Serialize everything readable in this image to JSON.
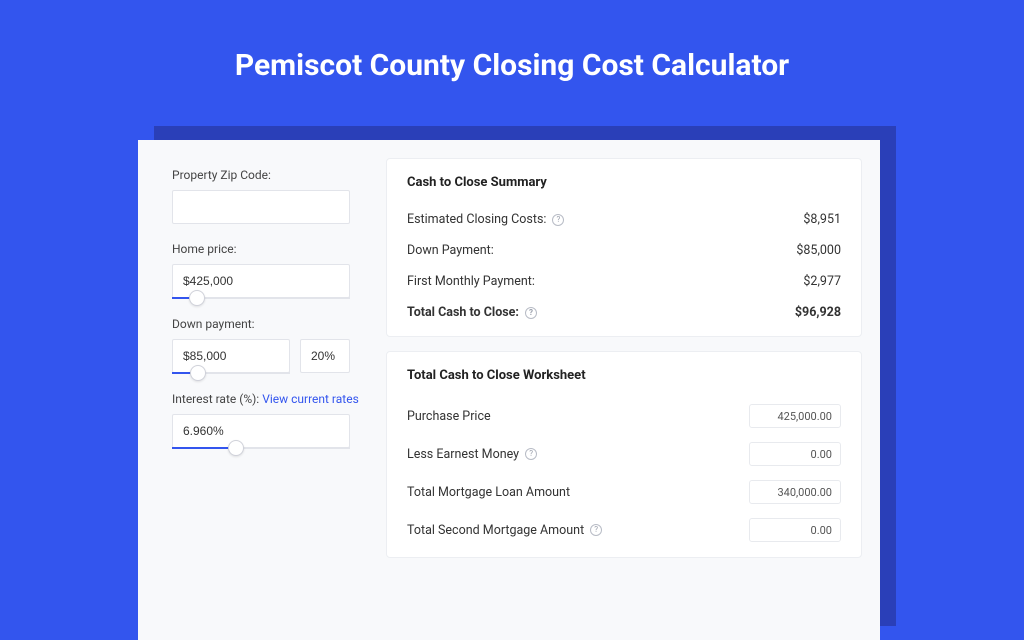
{
  "colors": {
    "page_bg": "#3355ee",
    "shadow": "#2a3fb8",
    "card_bg": "#f8f9fb",
    "panel_bg": "#ffffff",
    "border": "#e2e4ea",
    "link": "#3355ee",
    "text": "#333333"
  },
  "header": {
    "title": "Pemiscot County Closing Cost Calculator"
  },
  "form": {
    "zip": {
      "label": "Property Zip Code:",
      "value": ""
    },
    "home_price": {
      "label": "Home price:",
      "value": "$425,000",
      "slider_pct": 14
    },
    "down_payment": {
      "label": "Down payment:",
      "amount": "$85,000",
      "percent": "20%",
      "slider_pct": 22
    },
    "interest_rate": {
      "label_prefix": "Interest rate (%): ",
      "link_text": "View current rates",
      "value": "6.960%",
      "slider_pct": 36
    }
  },
  "summary": {
    "title": "Cash to Close Summary",
    "rows": [
      {
        "label": "Estimated Closing Costs:",
        "help": true,
        "value": "$8,951",
        "bold": false
      },
      {
        "label": "Down Payment:",
        "help": false,
        "value": "$85,000",
        "bold": false
      },
      {
        "label": "First Monthly Payment:",
        "help": false,
        "value": "$2,977",
        "bold": false
      },
      {
        "label": "Total Cash to Close:",
        "help": true,
        "value": "$96,928",
        "bold": true
      }
    ]
  },
  "worksheet": {
    "title": "Total Cash to Close Worksheet",
    "rows": [
      {
        "label": "Purchase Price",
        "help": false,
        "value": "425,000.00"
      },
      {
        "label": "Less Earnest Money",
        "help": true,
        "value": "0.00"
      },
      {
        "label": "Total Mortgage Loan Amount",
        "help": false,
        "value": "340,000.00"
      },
      {
        "label": "Total Second Mortgage Amount",
        "help": true,
        "value": "0.00"
      }
    ]
  }
}
